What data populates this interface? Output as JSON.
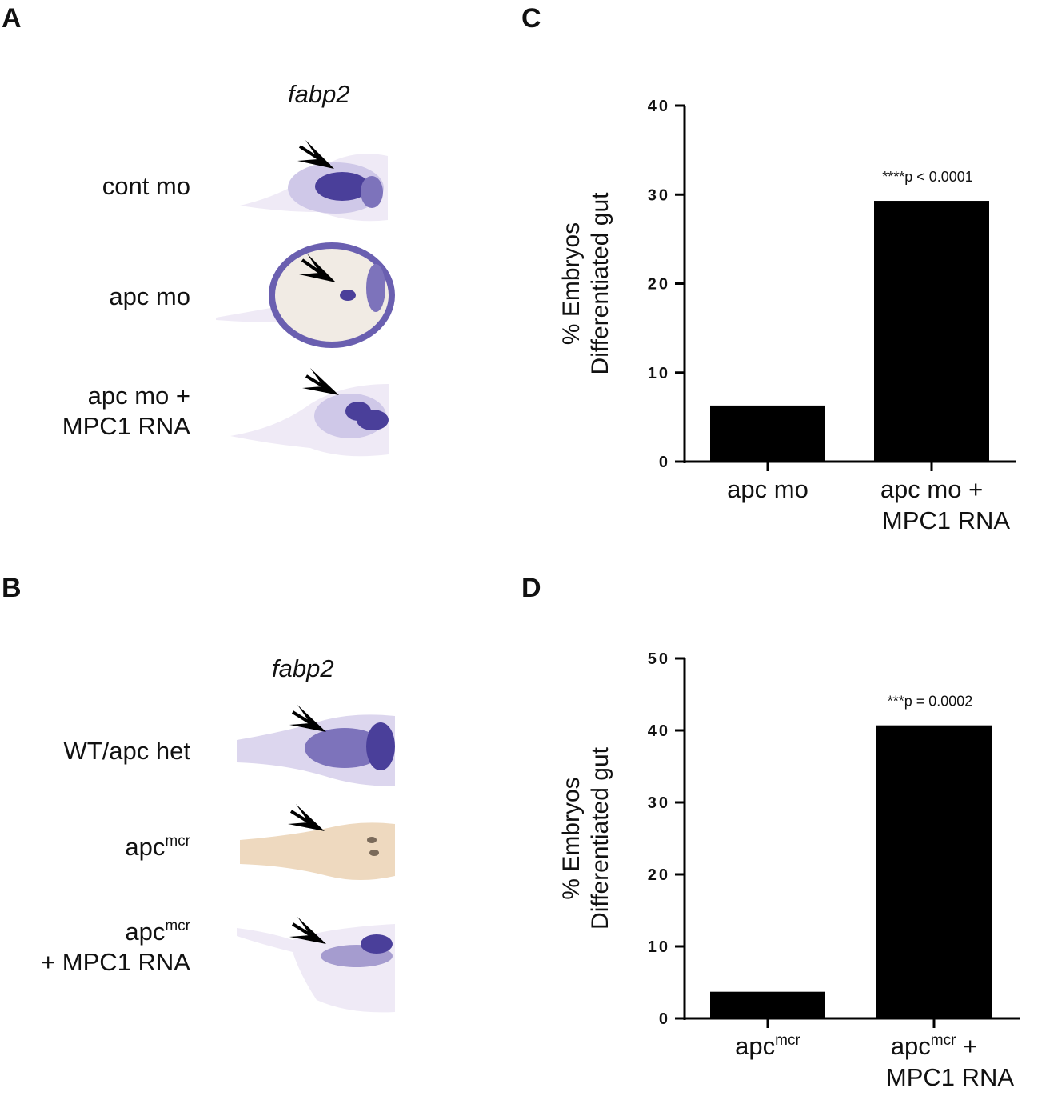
{
  "panels": {
    "A": {
      "letter": "A",
      "gene": "fabp2",
      "rows": [
        {
          "line1": "cont mo",
          "line2": ""
        },
        {
          "line1": "apc mo",
          "line2": ""
        },
        {
          "line1": "apc mo +",
          "line2": "MPC1 RNA"
        }
      ]
    },
    "B": {
      "letter": "B",
      "gene": "fabp2",
      "rows": [
        {
          "line1_base": "WT/apc het",
          "line1_sup": "",
          "line1_suffix": "",
          "line2": ""
        },
        {
          "line1_base": "apc",
          "line1_sup": "mcr",
          "line1_suffix": "",
          "line2": ""
        },
        {
          "line1_base": "apc",
          "line1_sup": "mcr",
          "line1_suffix": "",
          "line2": "+ MPC1 RNA"
        }
      ]
    },
    "C": {
      "letter": "C"
    },
    "D": {
      "letter": "D"
    }
  },
  "colors": {
    "bar": "#000000",
    "stain": "#4a3f9a",
    "stain_light": "#b9b2dc",
    "tissue_pale": "#efeaf6",
    "tissue_brown": "#eed9bf"
  },
  "chart_data": [
    {
      "type": "bar",
      "panel": "C",
      "categories": [
        {
          "line1_base": "apc  mo",
          "line1_sup": "",
          "line1_suffix": "",
          "line2": ""
        },
        {
          "line1_base": "apc mo +",
          "line1_sup": "",
          "line1_suffix": "",
          "line2": "MPC1 RNA"
        }
      ],
      "values": [
        6.3,
        29.3
      ],
      "ylabel_line1": "% Embryos",
      "ylabel_line2": "Differentiated gut",
      "ylim": [
        0,
        40
      ],
      "yticks": [
        "0",
        "10",
        "20",
        "30",
        "40"
      ],
      "annotation": "****p < 0.0001"
    },
    {
      "type": "bar",
      "panel": "D",
      "categories": [
        {
          "line1_base": "apc",
          "line1_sup": "mcr",
          "line1_suffix": "",
          "line2": ""
        },
        {
          "line1_base": "apc",
          "line1_sup": "mcr",
          "line1_suffix": " +",
          "line2": "MPC1 RNA"
        }
      ],
      "values": [
        3.7,
        40.7
      ],
      "ylabel_line1": "% Embryos",
      "ylabel_line2": "Differentiated gut",
      "ylim": [
        0,
        50
      ],
      "yticks": [
        "0",
        "10",
        "20",
        "30",
        "40",
        "50"
      ],
      "annotation": "***p = 0.0002"
    }
  ]
}
